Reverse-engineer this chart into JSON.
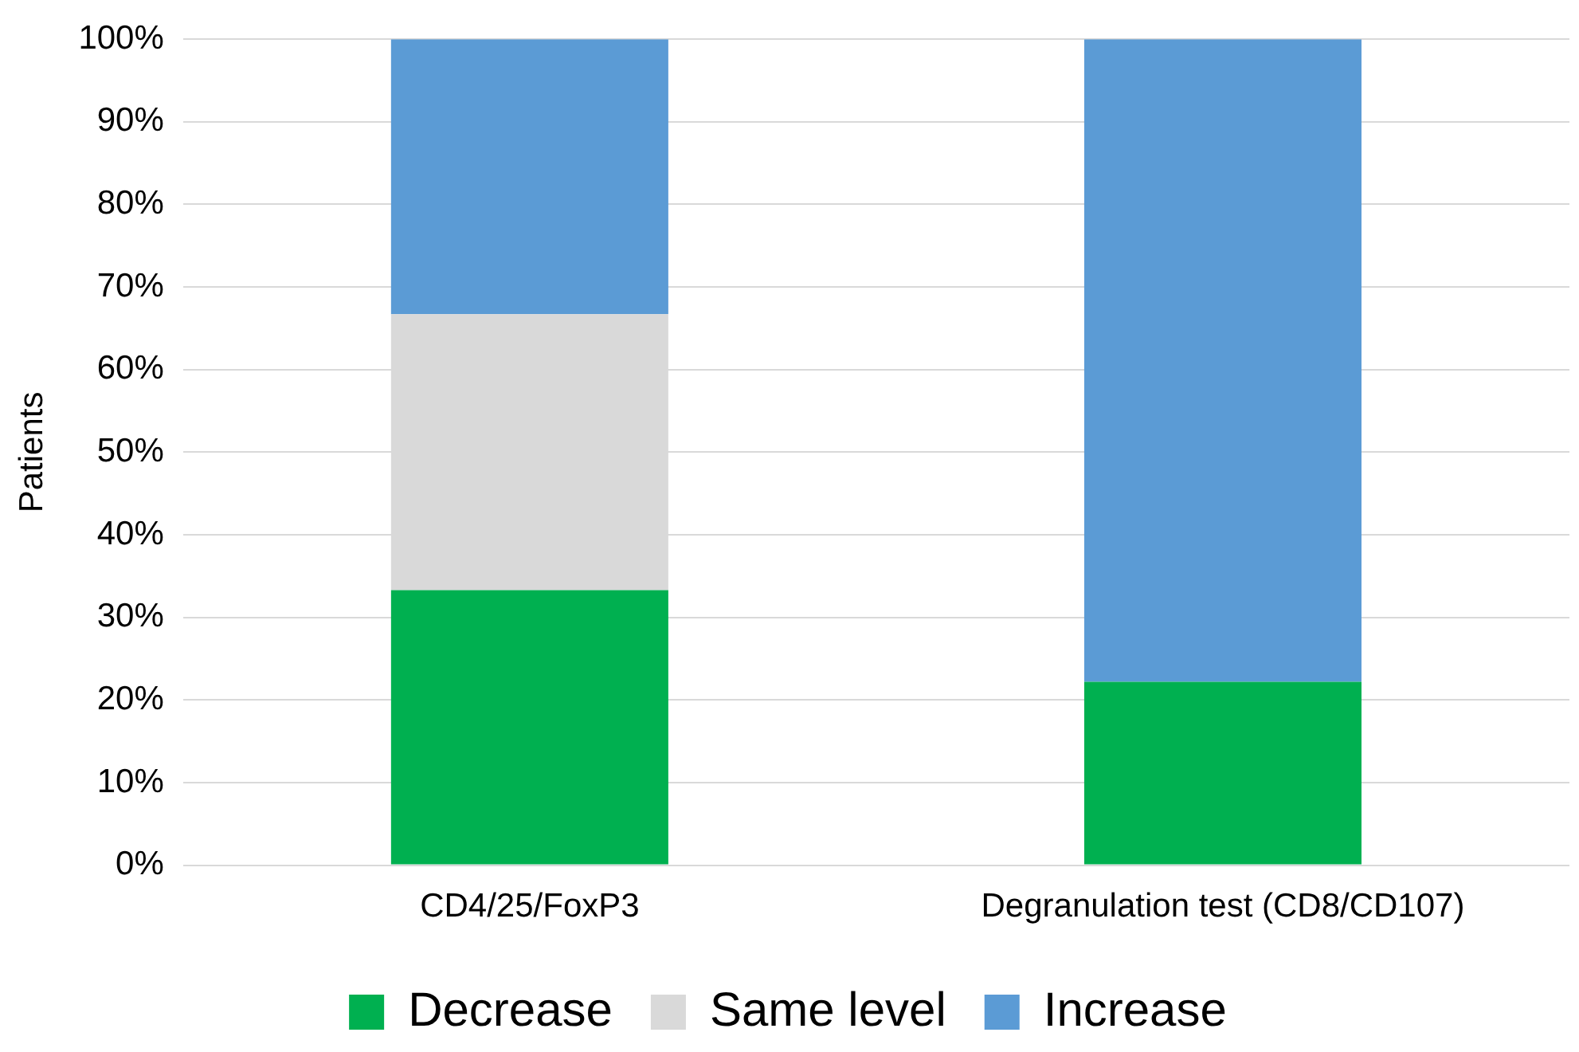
{
  "chart_data": {
    "type": "bar",
    "stacked": true,
    "ylabel": "Patients",
    "categories": [
      "CD4/25/FoxP3",
      "Degranulation test (CD8/CD107)"
    ],
    "series": [
      {
        "name": "Decrease",
        "color": "#00b050",
        "values": [
          33.3,
          22.2
        ]
      },
      {
        "name": "Same level",
        "color": "#d9d9d9",
        "values": [
          33.4,
          0
        ]
      },
      {
        "name": "Increase",
        "color": "#5b9bd5",
        "values": [
          33.3,
          77.8
        ]
      }
    ],
    "ylim": [
      0,
      100
    ],
    "yticks": [
      {
        "value": 0,
        "label": "0%"
      },
      {
        "value": 10,
        "label": "10%"
      },
      {
        "value": 20,
        "label": "20%"
      },
      {
        "value": 30,
        "label": "30%"
      },
      {
        "value": 40,
        "label": "40%"
      },
      {
        "value": 50,
        "label": "50%"
      },
      {
        "value": 60,
        "label": "60%"
      },
      {
        "value": 70,
        "label": "70%"
      },
      {
        "value": 80,
        "label": "80%"
      },
      {
        "value": 90,
        "label": "90%"
      },
      {
        "value": 100,
        "label": "100%"
      }
    ],
    "grid": "y",
    "legend": "bottom"
  }
}
